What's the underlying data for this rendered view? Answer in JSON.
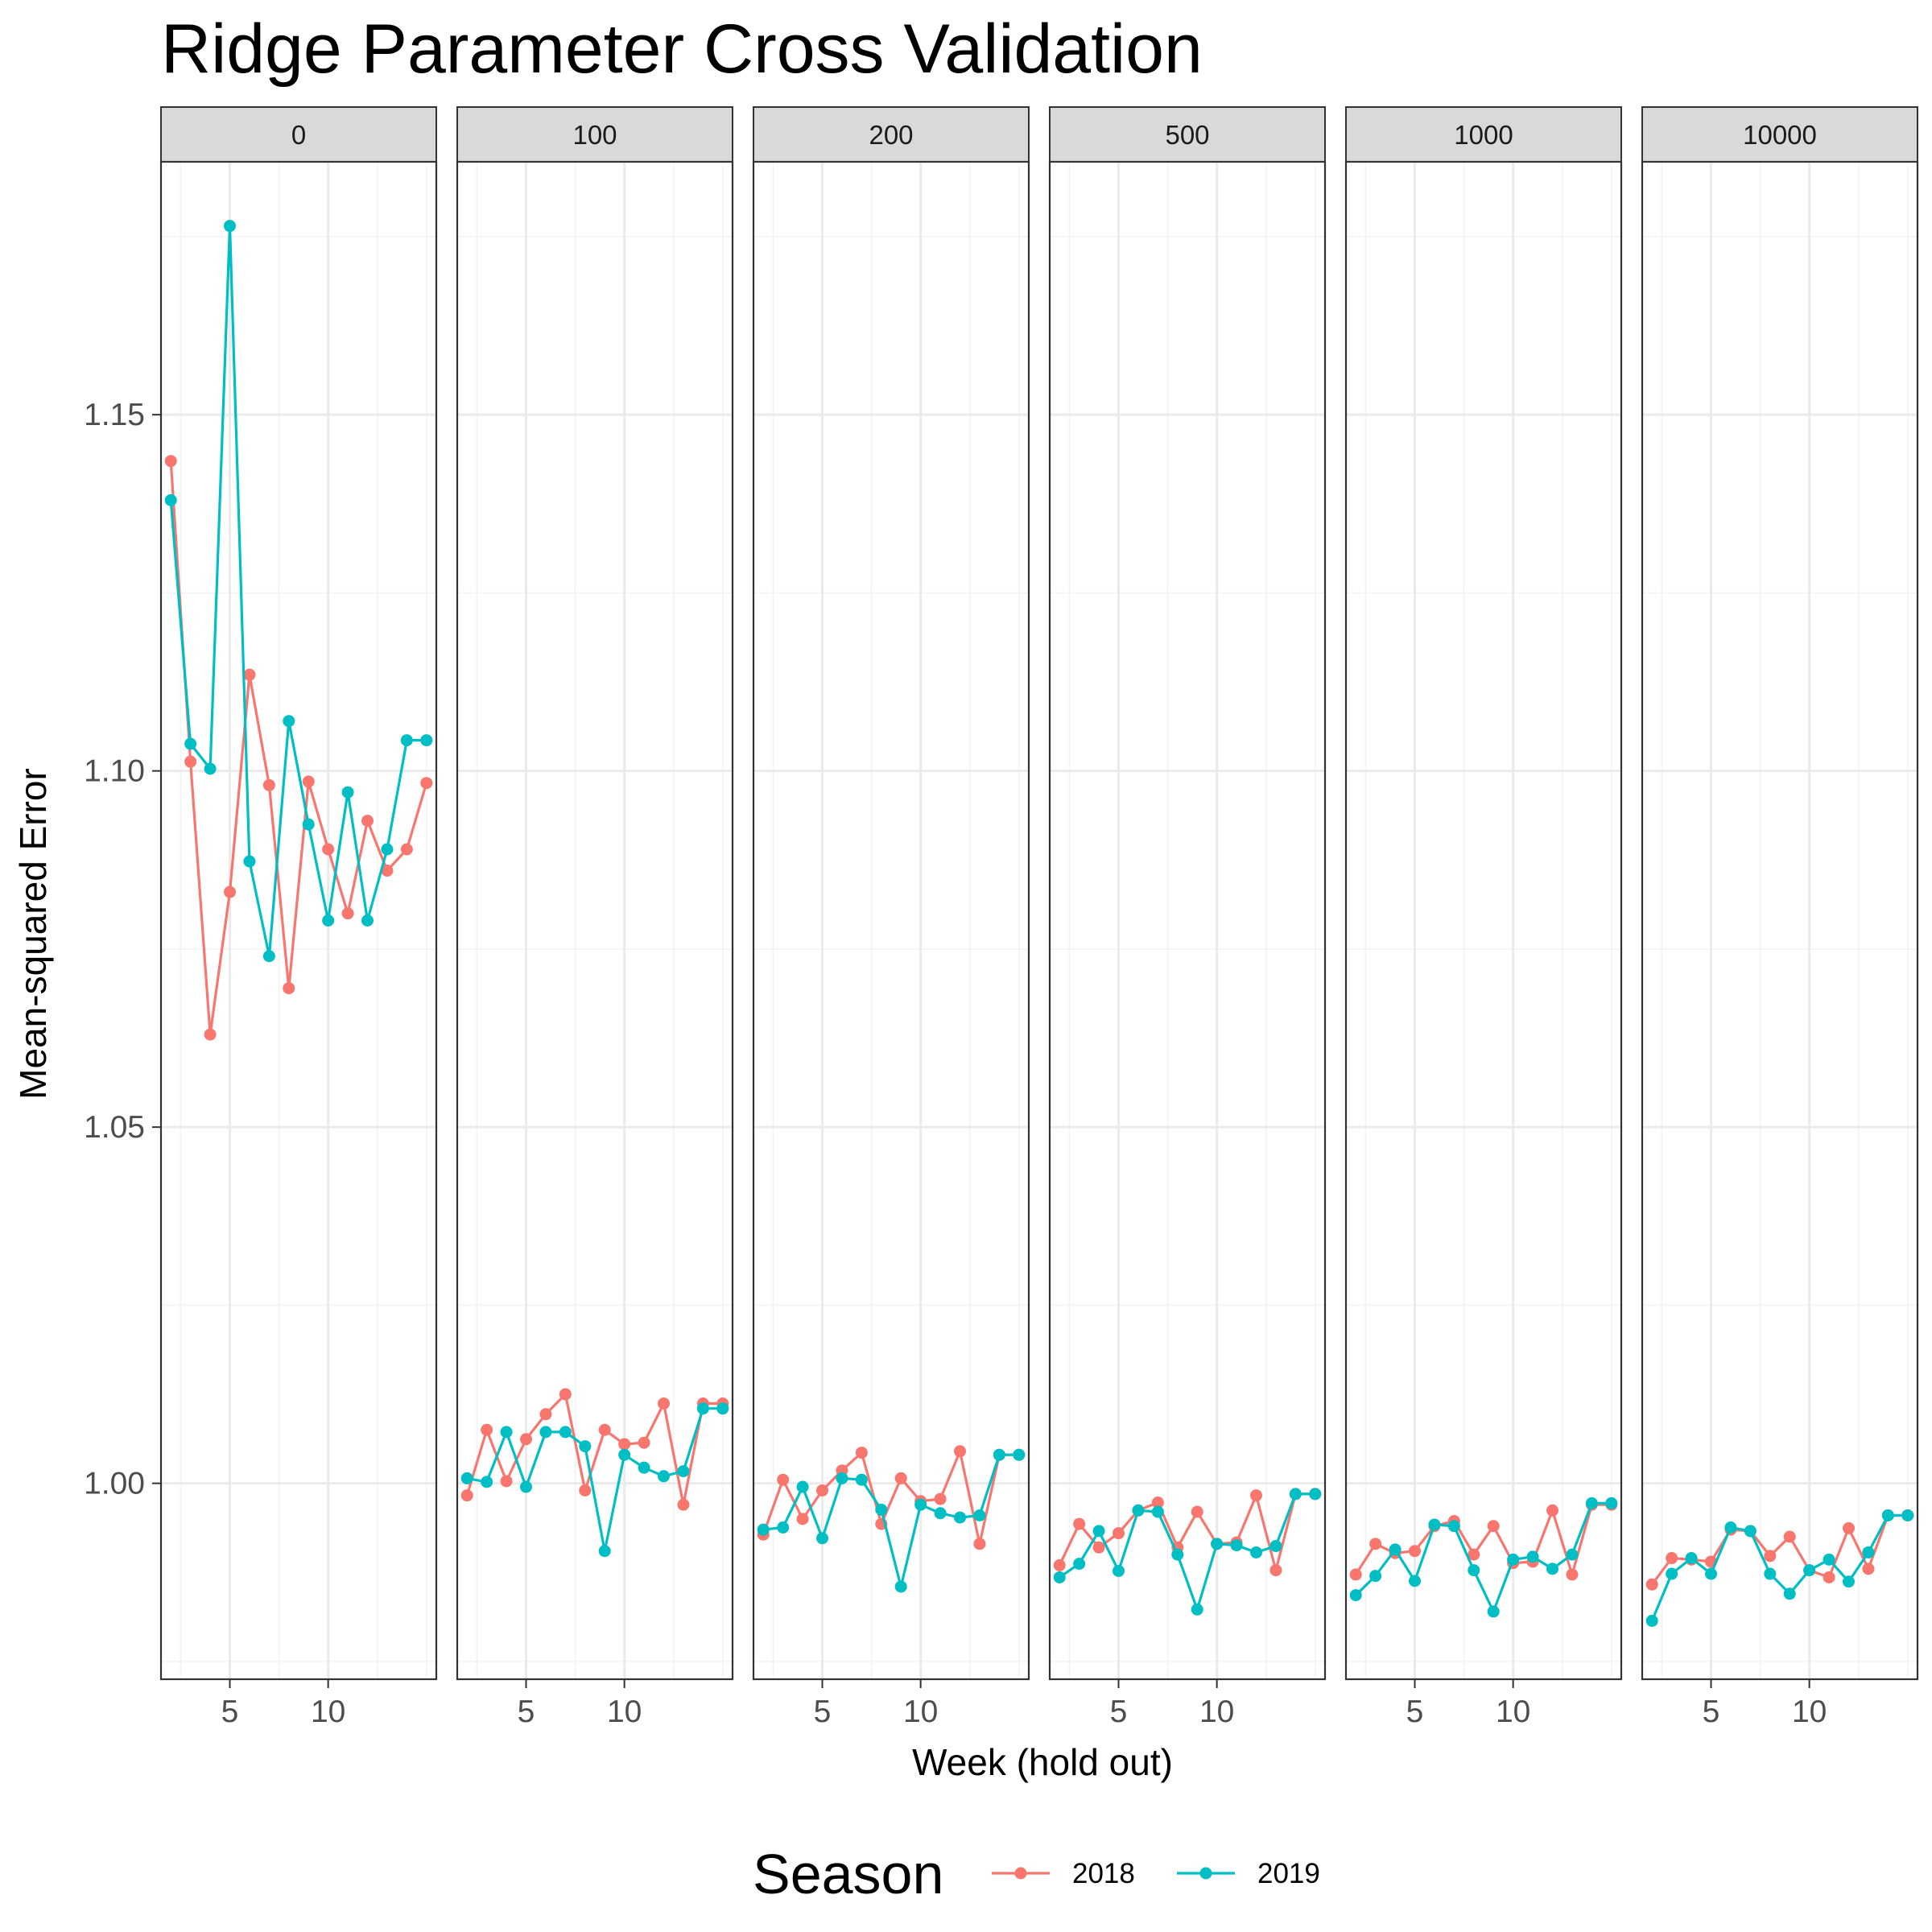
{
  "chart_data": {
    "type": "line",
    "title": "Ridge Parameter Cross Validation",
    "xlabel": "Week (hold out)",
    "ylabel": "Mean-squared Error",
    "facet_labels": [
      "0",
      "100",
      "200",
      "500",
      "1000",
      "10000"
    ],
    "x": [
      2,
      3,
      4,
      5,
      6,
      7,
      8,
      9,
      10,
      11,
      12,
      13,
      14,
      15
    ],
    "xlim": [
      1.5,
      15.5
    ],
    "ylim": [
      0.9725,
      1.1855
    ],
    "x_ticks": [
      5,
      10
    ],
    "x_tick_labels": [
      "5",
      "10"
    ],
    "y_ticks": [
      1.0,
      1.05,
      1.1,
      1.15
    ],
    "y_tick_labels": [
      "1.00",
      "1.05",
      "1.10",
      "1.15"
    ],
    "grid": true,
    "legend": {
      "title": "Season",
      "position": "bottom",
      "entries": [
        "2018",
        "2019"
      ]
    },
    "colors": {
      "2018": "#F8766D",
      "2019": "#00BFC4"
    },
    "facets": [
      {
        "label": "0",
        "series": [
          {
            "name": "2018",
            "values": [
              1.1435,
              1.1013,
              1.063,
              1.083,
              1.1135,
              1.098,
              1.0695,
              1.0985,
              1.089,
              1.08,
              1.093,
              1.086,
              1.089,
              1.0983
            ]
          },
          {
            "name": "2019",
            "values": [
              1.138,
              1.1038,
              1.1003,
              1.1765,
              1.0873,
              1.074,
              1.107,
              1.0925,
              1.079,
              1.097,
              1.079,
              1.089,
              1.1043,
              1.1043
            ]
          }
        ]
      },
      {
        "label": "100",
        "series": [
          {
            "name": "2018",
            "values": [
              0.9983,
              1.0075,
              1.0003,
              1.0062,
              1.0097,
              1.0125,
              0.999,
              1.0075,
              1.0055,
              1.0057,
              1.0112,
              0.997,
              1.0112,
              1.0112
            ]
          },
          {
            "name": "2019",
            "values": [
              1.0007,
              1.0002,
              1.0072,
              0.9995,
              1.0072,
              1.0072,
              1.0052,
              0.9905,
              1.004,
              1.0022,
              1.001,
              1.0017,
              1.0105,
              1.0105
            ]
          }
        ]
      },
      {
        "label": "200",
        "series": [
          {
            "name": "2018",
            "values": [
              0.9928,
              1.0005,
              0.995,
              0.999,
              1.0018,
              1.0043,
              0.9943,
              1.0007,
              0.9975,
              0.9978,
              1.0045,
              0.9915,
              1.004,
              1.004
            ]
          },
          {
            "name": "2019",
            "values": [
              0.9935,
              0.9938,
              0.9995,
              0.9923,
              1.0007,
              1.0005,
              0.9963,
              0.9855,
              0.997,
              0.9958,
              0.9952,
              0.9955,
              1.004,
              1.004
            ]
          }
        ]
      },
      {
        "label": "500",
        "series": [
          {
            "name": "2018",
            "values": [
              0.9885,
              0.9943,
              0.991,
              0.993,
              0.9962,
              0.9973,
              0.991,
              0.996,
              0.9915,
              0.9917,
              0.9983,
              0.9878,
              0.9985,
              0.9985
            ]
          },
          {
            "name": "2019",
            "values": [
              0.9868,
              0.9887,
              0.9933,
              0.9877,
              0.9962,
              0.996,
              0.99,
              0.9823,
              0.9915,
              0.9913,
              0.9903,
              0.9912,
              0.9985,
              0.9985
            ]
          }
        ]
      },
      {
        "label": "1000",
        "series": [
          {
            "name": "2018",
            "values": [
              0.9872,
              0.9915,
              0.9902,
              0.9905,
              0.994,
              0.9947,
              0.99,
              0.994,
              0.9888,
              0.989,
              0.9962,
              0.9872,
              0.997,
              0.997
            ]
          },
          {
            "name": "2019",
            "values": [
              0.9843,
              0.987,
              0.9907,
              0.9863,
              0.9942,
              0.994,
              0.9878,
              0.982,
              0.9893,
              0.9897,
              0.988,
              0.99,
              0.9972,
              0.9972
            ]
          }
        ]
      },
      {
        "label": "10000",
        "series": [
          {
            "name": "2018",
            "values": [
              0.9858,
              0.9895,
              0.9893,
              0.989,
              0.9935,
              0.9933,
              0.9898,
              0.9925,
              0.9878,
              0.9868,
              0.9937,
              0.988,
              0.9955,
              0.9955
            ]
          },
          {
            "name": "2019",
            "values": [
              0.9807,
              0.9873,
              0.9895,
              0.9873,
              0.9938,
              0.9933,
              0.9873,
              0.9845,
              0.9878,
              0.9893,
              0.9862,
              0.9903,
              0.9955,
              0.9955
            ]
          }
        ]
      }
    ]
  }
}
